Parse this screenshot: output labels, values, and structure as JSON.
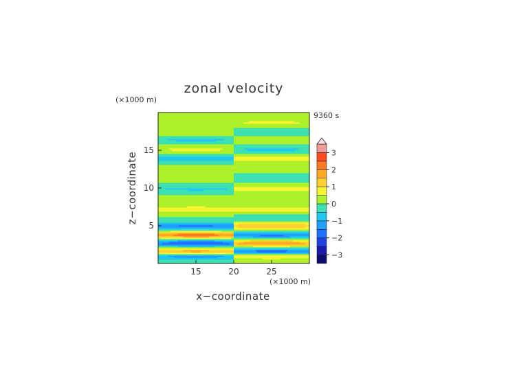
{
  "chart_data": {
    "type": "heatmap",
    "title": "zonal velocity",
    "xlabel": "x−coordinate",
    "ylabel": "z−coordinate",
    "x_unit": "(×1000 m)",
    "z_unit": "(×1000 m)",
    "time_label": "9360 s",
    "xlim": [
      10,
      30
    ],
    "ylim": [
      0,
      20
    ],
    "x_ticks": [
      "15",
      "20",
      "25"
    ],
    "y_ticks": [
      "5",
      "10",
      "15"
    ],
    "grid": false,
    "colorbar": {
      "position": "right",
      "ticks": [
        "3",
        "2",
        "1",
        "0",
        "−1",
        "−2",
        "−3"
      ],
      "levels": [
        -3.5,
        -3,
        -2.5,
        -2,
        -1.5,
        -1,
        -0.5,
        0,
        0.5,
        1,
        1.5,
        2,
        2.5,
        3,
        3.5
      ],
      "colors": [
        "#0d0d6e",
        "#1a1ab0",
        "#2040e0",
        "#1f70ff",
        "#1fa0ff",
        "#1fc8f0",
        "#3de0b0",
        "#aef02a",
        "#f5f530",
        "#ffd030",
        "#ffa820",
        "#ff7a20",
        "#ff4a20",
        "#f09a9a",
        "#f8caca"
      ],
      "extend_max": true
    },
    "bands": [
      {
        "z": 1.0,
        "left": -1.4,
        "right": 1.1
      },
      {
        "z": 1.6,
        "left": 1.8,
        "right": -1.8
      },
      {
        "z": 2.7,
        "left": -1.9,
        "right": 1.9
      },
      {
        "z": 3.8,
        "left": 2.3,
        "right": -1.6
      },
      {
        "z": 5.0,
        "left": -1.6,
        "right": 1.5
      },
      {
        "z": 6.2,
        "left": 0.0,
        "right": -0.4
      },
      {
        "z": 7.2,
        "left": 1.0,
        "right": 0.9
      },
      {
        "z": 8.6,
        "left": 0.2,
        "right": 0.1
      },
      {
        "z": 9.9,
        "left": -0.6,
        "right": 0.8
      },
      {
        "z": 11.3,
        "left": 0.1,
        "right": -0.3
      },
      {
        "z": 12.6,
        "left": 0.3,
        "right": 0.5
      },
      {
        "z": 13.9,
        "left": -0.9,
        "right": 0.8
      },
      {
        "z": 15.1,
        "left": 0.6,
        "right": -0.6
      },
      {
        "z": 16.4,
        "left": -0.6,
        "right": 0.5
      },
      {
        "z": 17.5,
        "left": 0.4,
        "right": -0.5
      },
      {
        "z": 18.7,
        "left": 0.1,
        "right": 0.6
      }
    ]
  }
}
